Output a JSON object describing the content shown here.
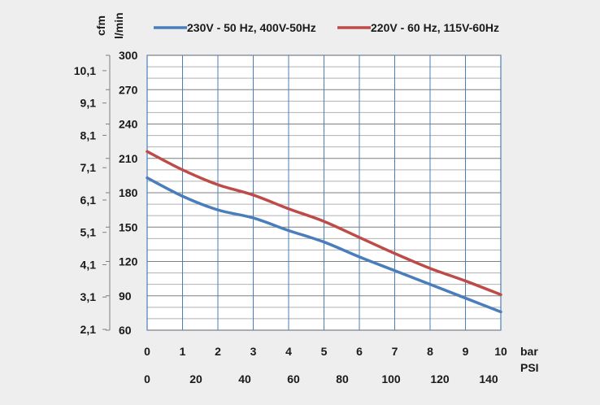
{
  "chart_data": {
    "type": "line",
    "units": {
      "left_outer": "cfm",
      "left_inner": "l/min",
      "bottom_upper": "bar",
      "bottom_lower": "PSI"
    },
    "x_bar": [
      0,
      1,
      2,
      3,
      4,
      5,
      6,
      7,
      8,
      9,
      10
    ],
    "x_psi_ticks": [
      0,
      20,
      40,
      60,
      80,
      100,
      120,
      140
    ],
    "y_lmin_ticks": [
      60,
      90,
      120,
      150,
      180,
      210,
      240,
      270,
      300
    ],
    "y_cfm_ticks": [
      "2,1",
      "3,1",
      "4,1",
      "5,1",
      "6,1",
      "7,1",
      "8,1",
      "9,1",
      "10,1"
    ],
    "xlim_bar": [
      0,
      10
    ],
    "ylim_lmin": [
      60,
      300
    ],
    "grid": true,
    "legend_position": "top",
    "series": [
      {
        "name": "230V - 50 Hz, 400V-50Hz",
        "color": "#4a7ebb",
        "values": [
          193,
          177,
          165,
          158,
          147,
          137,
          124,
          112,
          100,
          88,
          76
        ]
      },
      {
        "name": "220V - 60 Hz, 115V-60Hz",
        "color": "#be4b48",
        "values": [
          216,
          200,
          187,
          178,
          166,
          155,
          141,
          127,
          114,
          103,
          91
        ]
      }
    ]
  }
}
